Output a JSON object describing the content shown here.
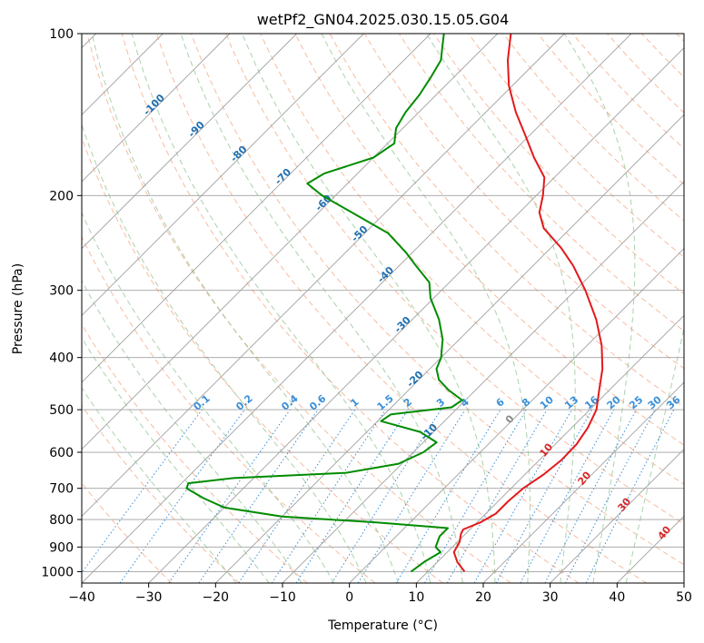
{
  "chart_data": {
    "type": "line",
    "title": "wetPf2_GN04.2025.030.15.05.G04",
    "xlabel": "Temperature (°C)",
    "ylabel": "Pressure (hPa)",
    "xlim": [
      -40,
      50
    ],
    "ylim": [
      1050,
      100
    ],
    "yscale": "log",
    "x_ticks": [
      -40,
      -30,
      -20,
      -10,
      0,
      10,
      20,
      30,
      40,
      50
    ],
    "y_ticks": [
      100,
      200,
      300,
      400,
      500,
      600,
      700,
      800,
      900,
      1000
    ],
    "grid": true,
    "diagram": "skew-T log-p",
    "colors": {
      "temperature": "#e31a1c",
      "dewpoint": "#008c00",
      "isotherm": "#a0a0a0",
      "dry_adiabat": "#f4a582",
      "moist_adiabat": "#95c795",
      "mixing_ratio": "#3a8fd8",
      "isotherm_label": "#1f6fb0",
      "saturation_label": "#d62728"
    },
    "series": [
      {
        "color": "#e31a1c",
        "points": [
          {
            "p": 1000,
            "t": 15.5
          },
          {
            "p": 960,
            "t": 13.0
          },
          {
            "p": 920,
            "t": 11.0
          },
          {
            "p": 880,
            "t": 10.3
          },
          {
            "p": 850,
            "t": 9.3
          },
          {
            "p": 835,
            "t": 9.0
          },
          {
            "p": 810,
            "t": 10.5
          },
          {
            "p": 780,
            "t": 11.5
          },
          {
            "p": 740,
            "t": 11.5
          },
          {
            "p": 700,
            "t": 11.8
          },
          {
            "p": 660,
            "t": 12.8
          },
          {
            "p": 620,
            "t": 13.3
          },
          {
            "p": 580,
            "t": 13.2
          },
          {
            "p": 540,
            "t": 12.4
          },
          {
            "p": 500,
            "t": 11.0
          },
          {
            "p": 460,
            "t": 8.5
          },
          {
            "p": 420,
            "t": 5.8
          },
          {
            "p": 380,
            "t": 2.2
          },
          {
            "p": 340,
            "t": -2.5
          },
          {
            "p": 300,
            "t": -8.5
          },
          {
            "p": 270,
            "t": -14.0
          },
          {
            "p": 250,
            "t": -18.5
          },
          {
            "p": 230,
            "t": -24.0
          },
          {
            "p": 215,
            "t": -27.0
          },
          {
            "p": 200,
            "t": -29.0
          },
          {
            "p": 185,
            "t": -31.5
          },
          {
            "p": 170,
            "t": -36.0
          },
          {
            "p": 155,
            "t": -40.5
          },
          {
            "p": 140,
            "t": -45.5
          },
          {
            "p": 125,
            "t": -50.5
          },
          {
            "p": 112,
            "t": -54.5
          },
          {
            "p": 100,
            "t": -58.0
          }
        ]
      },
      {
        "color": "#008c00",
        "points": [
          {
            "p": 1000,
            "t": 7.5
          },
          {
            "p": 960,
            "t": 8.0
          },
          {
            "p": 920,
            "t": 9.0
          },
          {
            "p": 900,
            "t": 7.5
          },
          {
            "p": 880,
            "t": 7.0
          },
          {
            "p": 860,
            "t": 6.5
          },
          {
            "p": 830,
            "t": 6.5
          },
          {
            "p": 810,
            "t": -5.0
          },
          {
            "p": 790,
            "t": -20.0
          },
          {
            "p": 760,
            "t": -30.0
          },
          {
            "p": 730,
            "t": -34.5
          },
          {
            "p": 700,
            "t": -38.5
          },
          {
            "p": 685,
            "t": -39.0
          },
          {
            "p": 670,
            "t": -33.0
          },
          {
            "p": 655,
            "t": -17.0
          },
          {
            "p": 630,
            "t": -10.5
          },
          {
            "p": 600,
            "t": -8.5
          },
          {
            "p": 575,
            "t": -8.0
          },
          {
            "p": 550,
            "t": -12.0
          },
          {
            "p": 525,
            "t": -19.5
          },
          {
            "p": 510,
            "t": -19.0
          },
          {
            "p": 495,
            "t": -11.0
          },
          {
            "p": 480,
            "t": -10.5
          },
          {
            "p": 460,
            "t": -14.0
          },
          {
            "p": 440,
            "t": -17.0
          },
          {
            "p": 420,
            "t": -19.0
          },
          {
            "p": 400,
            "t": -20.0
          },
          {
            "p": 370,
            "t": -22.5
          },
          {
            "p": 340,
            "t": -26.0
          },
          {
            "p": 310,
            "t": -30.5
          },
          {
            "p": 290,
            "t": -33.0
          },
          {
            "p": 270,
            "t": -37.5
          },
          {
            "p": 255,
            "t": -41.0
          },
          {
            "p": 235,
            "t": -46.5
          },
          {
            "p": 215,
            "t": -55.0
          },
          {
            "p": 200,
            "t": -62.0
          },
          {
            "p": 190,
            "t": -66.0
          },
          {
            "p": 182,
            "t": -65.0
          },
          {
            "p": 170,
            "t": -60.0
          },
          {
            "p": 160,
            "t": -59.0
          },
          {
            "p": 150,
            "t": -61.0
          },
          {
            "p": 140,
            "t": -62.0
          },
          {
            "p": 130,
            "t": -62.5
          },
          {
            "p": 120,
            "t": -63.5
          },
          {
            "p": 112,
            "t": -64.5
          },
          {
            "p": 105,
            "t": -66.5
          },
          {
            "p": 100,
            "t": -68.0
          }
        ]
      }
    ],
    "isotherm_labels": [
      "-100",
      "-90",
      "-80",
      "-70",
      "-60",
      "-50",
      "-40",
      "-30",
      "-20",
      "-10"
    ],
    "mixing_ratio_labels": [
      "0.1",
      "0.2",
      "0.4",
      "0.6",
      "1",
      "1.5",
      "2",
      "3",
      "4",
      "6",
      "8",
      "10",
      "13",
      "16",
      "20",
      "25",
      "30",
      "36"
    ],
    "saturation_labels": [
      "0",
      "10",
      "20",
      "30",
      "40"
    ]
  }
}
